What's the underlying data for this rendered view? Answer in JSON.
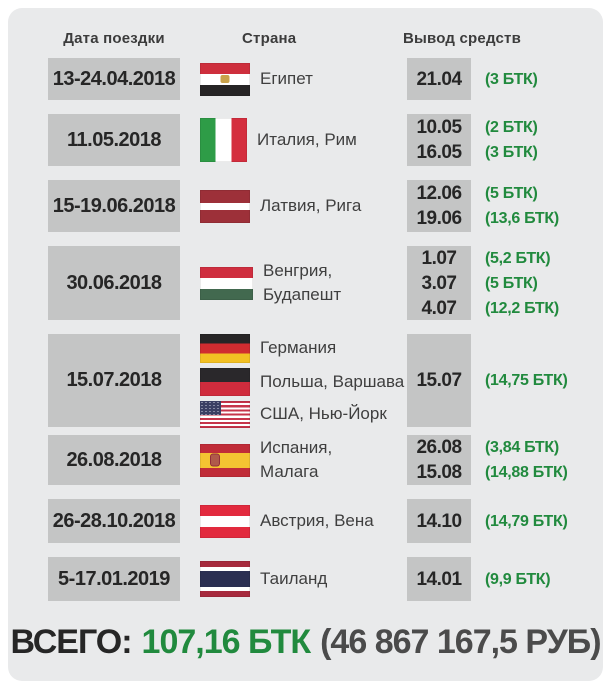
{
  "header": {
    "date_col": "Дата поездки",
    "country_col": "Страна",
    "withdraw_col": "Вывод средств"
  },
  "rows": [
    {
      "date": "13-24.04.2018",
      "countries": [
        {
          "flag": "egypt-flag",
          "label": "Египет"
        }
      ],
      "withdrawals": [
        {
          "date": "21.04",
          "amount": "(3 БТК)"
        }
      ]
    },
    {
      "date": "11.05.2018",
      "countries": [
        {
          "flag": "italy-flag",
          "label": "Италия, Рим"
        }
      ],
      "withdrawals": [
        {
          "date": "10.05",
          "amount": "(2 БТК)"
        },
        {
          "date": "16.05",
          "amount": "(3 БТК)"
        }
      ]
    },
    {
      "date": "15-19.06.2018",
      "countries": [
        {
          "flag": "latvia-flag",
          "label": "Латвия, Рига"
        }
      ],
      "withdrawals": [
        {
          "date": "12.06",
          "amount": "(5 БТК)"
        },
        {
          "date": "19.06",
          "amount": "(13,6 БТК)"
        }
      ]
    },
    {
      "date": "30.06.2018",
      "countries": [
        {
          "flag": "hungary-flag",
          "label": "Венгрия,\nБудапешт"
        }
      ],
      "withdrawals": [
        {
          "date": "1.07",
          "amount": "(5,2 БТК)"
        },
        {
          "date": "3.07",
          "amount": "(5 БТК)"
        },
        {
          "date": "4.07",
          "amount": "(12,2 БТК)"
        }
      ]
    },
    {
      "date": "15.07.2018",
      "countries": [
        {
          "flag": "germany-flag",
          "label": "Германия"
        },
        {
          "flag": "poland-flag",
          "label": "Польша, Варшава"
        },
        {
          "flag": "usa-flag",
          "label": "США, Нью-Йорк"
        }
      ],
      "withdrawals": [
        {
          "date": "15.07",
          "amount": "(14,75 БТК)"
        }
      ]
    },
    {
      "date": "26.08.2018",
      "countries": [
        {
          "flag": "spain-flag",
          "label": "Испания,\nМалага"
        }
      ],
      "withdrawals": [
        {
          "date": "26.08",
          "amount": "(3,84 БТК)"
        },
        {
          "date": "15.08",
          "amount": "(14,88 БТК)"
        }
      ]
    },
    {
      "date": "26-28.10.2018",
      "countries": [
        {
          "flag": "austria-flag",
          "label": "Австрия, Вена"
        }
      ],
      "withdrawals": [
        {
          "date": "14.10",
          "amount": "(14,79 БТК)"
        }
      ]
    },
    {
      "date": "5-17.01.2019",
      "countries": [
        {
          "flag": "thailand-flag",
          "label": "Таиланд"
        }
      ],
      "withdrawals": [
        {
          "date": "14.01",
          "amount": "(9,9 БТК)"
        }
      ]
    }
  ],
  "total": {
    "label": "ВСЕГО:",
    "btc": "107,16 БТК",
    "rub": "(46 867 167,5 РУБ)"
  },
  "colors": {
    "accent_green": "#218a3e",
    "box_gray": "#c4c5c5",
    "card_bg": "#e9eaeb"
  }
}
